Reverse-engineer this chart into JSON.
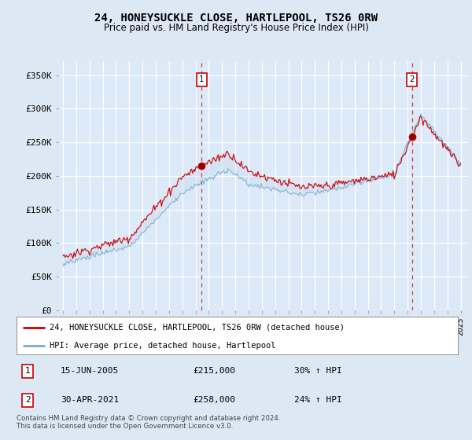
{
  "title": "24, HONEYSUCKLE CLOSE, HARTLEPOOL, TS26 0RW",
  "subtitle": "Price paid vs. HM Land Registry's House Price Index (HPI)",
  "bg_color": "#dce9f5",
  "plot_bg": "#dce9f8",
  "red_color": "#cc0000",
  "blue_color": "#7aadcc",
  "fill_color": "#c5d9ee",
  "dashed_color": "#cc0000",
  "ylim": [
    0,
    370000
  ],
  "yticks": [
    0,
    50000,
    100000,
    150000,
    200000,
    250000,
    300000,
    350000
  ],
  "ytick_labels": [
    "£0",
    "£50K",
    "£100K",
    "£150K",
    "£200K",
    "£250K",
    "£300K",
    "£350K"
  ],
  "sale1_year": 2005.46,
  "sale1_price": 215000,
  "sale2_year": 2021.33,
  "sale2_price": 258000,
  "legend_entry1": "24, HONEYSUCKLE CLOSE, HARTLEPOOL, TS26 0RW (detached house)",
  "legend_entry2": "HPI: Average price, detached house, Hartlepool",
  "annotation1": [
    "1",
    "15-JUN-2005",
    "£215,000",
    "30% ↑ HPI"
  ],
  "annotation2": [
    "2",
    "30-APR-2021",
    "£258,000",
    "24% ↑ HPI"
  ],
  "footer": "Contains HM Land Registry data © Crown copyright and database right 2024.\nThis data is licensed under the Open Government Licence v3.0."
}
